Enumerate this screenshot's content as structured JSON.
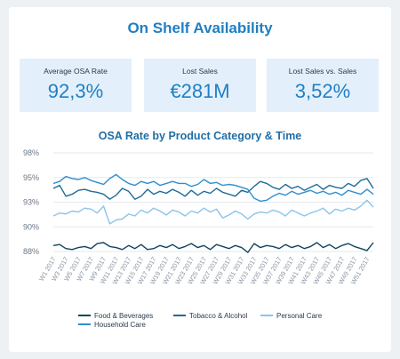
{
  "dashboard": {
    "title": "On Shelf Availability"
  },
  "kpis": [
    {
      "label": "Average OSA Rate",
      "value": "92,3%"
    },
    {
      "label": "Lost Sales",
      "value": "€281M"
    },
    {
      "label": "Lost Sales vs. Sales",
      "value": "3,52%"
    }
  ],
  "colors": {
    "title": "#1f7fc4",
    "food": "#13445e",
    "tobacco": "#1e6c97",
    "personal": "#8cc4ea",
    "household": "#2f8ed0",
    "kpi_bg": "#e3f0fb"
  },
  "chart_data": {
    "type": "line",
    "title": "OSA Rate by Product Category & Time",
    "xlabel": "",
    "ylabel": "",
    "y_ticks": [
      "98%",
      "95%",
      "93%",
      "90%",
      "88%"
    ],
    "ylim": [
      88,
      98
    ],
    "grid": true,
    "legend_position": "bottom",
    "x_tick_labels": [
      "W1 2017",
      "W3 2017",
      "W5 2017",
      "W7 2017",
      "W9 2017",
      "W11 2017",
      "W13 2017",
      "W15 2017",
      "W17 2017",
      "W19 2017",
      "W21 2017",
      "W23 2017",
      "W25 2017",
      "W27 2017",
      "W29 2017",
      "W31 2017",
      "W33 2017",
      "W35 2017",
      "W37 2017",
      "W39 2017",
      "W41 2017",
      "W43 2017",
      "W45 2017",
      "W47 2017",
      "W49 2017",
      "W51 2017"
    ],
    "x": [
      "W1",
      "W2",
      "W3",
      "W4",
      "W5",
      "W6",
      "W7",
      "W8",
      "W9",
      "W10",
      "W11",
      "W12",
      "W13",
      "W14",
      "W15",
      "W16",
      "W17",
      "W18",
      "W19",
      "W20",
      "W21",
      "W22",
      "W23",
      "W24",
      "W25",
      "W26",
      "W27",
      "W28",
      "W29",
      "W30",
      "W31",
      "W32",
      "W33",
      "W34",
      "W35",
      "W36",
      "W37",
      "W38",
      "W39",
      "W40",
      "W41",
      "W42",
      "W43",
      "W44",
      "W45",
      "W46",
      "W47",
      "W48",
      "W49",
      "W50",
      "W51",
      "W52"
    ],
    "series": [
      {
        "name": "Food & Beverages",
        "key": "food",
        "values": [
          88.6,
          88.7,
          88.3,
          88.2,
          88.4,
          88.5,
          88.3,
          88.8,
          88.9,
          88.5,
          88.4,
          88.2,
          88.6,
          88.3,
          88.7,
          88.2,
          88.3,
          88.6,
          88.4,
          88.7,
          88.3,
          88.5,
          88.8,
          88.4,
          88.6,
          88.2,
          88.7,
          88.5,
          88.3,
          88.6,
          88.4,
          87.9,
          88.8,
          88.4,
          88.6,
          88.5,
          88.3,
          88.7,
          88.4,
          88.6,
          88.3,
          88.5,
          88.9,
          88.4,
          88.7,
          88.3,
          88.6,
          88.8,
          88.5,
          88.3,
          88.1,
          88.9
        ]
      },
      {
        "name": "Tobacco & Alcohol",
        "key": "tobacco",
        "values": [
          94.4,
          94.7,
          93.6,
          93.8,
          94.2,
          94.3,
          94.1,
          94.0,
          93.8,
          93.3,
          93.7,
          94.4,
          94.1,
          93.3,
          93.6,
          94.3,
          93.8,
          94.1,
          93.9,
          94.3,
          94.0,
          93.6,
          94.2,
          93.7,
          94.1,
          93.9,
          94.4,
          94.0,
          93.8,
          93.6,
          94.2,
          94.0,
          94.6,
          95.1,
          94.9,
          94.5,
          94.3,
          94.8,
          94.4,
          94.6,
          94.2,
          94.5,
          94.8,
          94.3,
          94.7,
          94.5,
          94.4,
          94.9,
          94.6,
          95.2,
          95.4,
          94.4
        ]
      },
      {
        "name": "Personal Care",
        "key": "personal",
        "values": [
          91.6,
          91.9,
          91.8,
          92.1,
          92.0,
          92.4,
          92.3,
          91.9,
          92.6,
          90.8,
          91.2,
          91.3,
          91.8,
          91.6,
          92.2,
          91.9,
          92.4,
          92.1,
          91.7,
          92.2,
          92.0,
          91.6,
          92.1,
          91.9,
          92.4,
          92.0,
          92.3,
          91.4,
          91.7,
          92.1,
          91.8,
          91.3,
          91.8,
          92.0,
          91.9,
          92.2,
          92.0,
          91.6,
          92.2,
          91.9,
          91.6,
          91.9,
          92.1,
          92.4,
          91.8,
          92.3,
          92.1,
          92.4,
          92.2,
          92.6,
          93.2,
          92.5
        ]
      },
      {
        "name": "Household Care",
        "key": "household",
        "values": [
          94.9,
          95.1,
          95.6,
          95.4,
          95.3,
          95.5,
          95.2,
          95.0,
          94.8,
          95.4,
          95.8,
          95.3,
          94.9,
          94.7,
          95.1,
          94.9,
          95.1,
          94.7,
          94.9,
          95.1,
          94.9,
          94.9,
          94.6,
          94.8,
          95.3,
          94.9,
          95.0,
          94.7,
          94.8,
          94.7,
          94.5,
          94.3,
          93.4,
          93.1,
          93.2,
          93.6,
          93.9,
          93.7,
          94.1,
          93.8,
          94.0,
          94.2,
          93.9,
          94.1,
          93.8,
          94.0,
          93.7,
          94.2,
          94.0,
          93.8,
          94.3,
          93.8
        ]
      }
    ]
  },
  "legend": [
    {
      "label": "Food & Beverages",
      "key": "food"
    },
    {
      "label": "Tobacco & Alcohol",
      "key": "tobacco"
    },
    {
      "label": "Personal Care",
      "key": "personal"
    },
    {
      "label": "Household Care",
      "key": "household"
    }
  ]
}
